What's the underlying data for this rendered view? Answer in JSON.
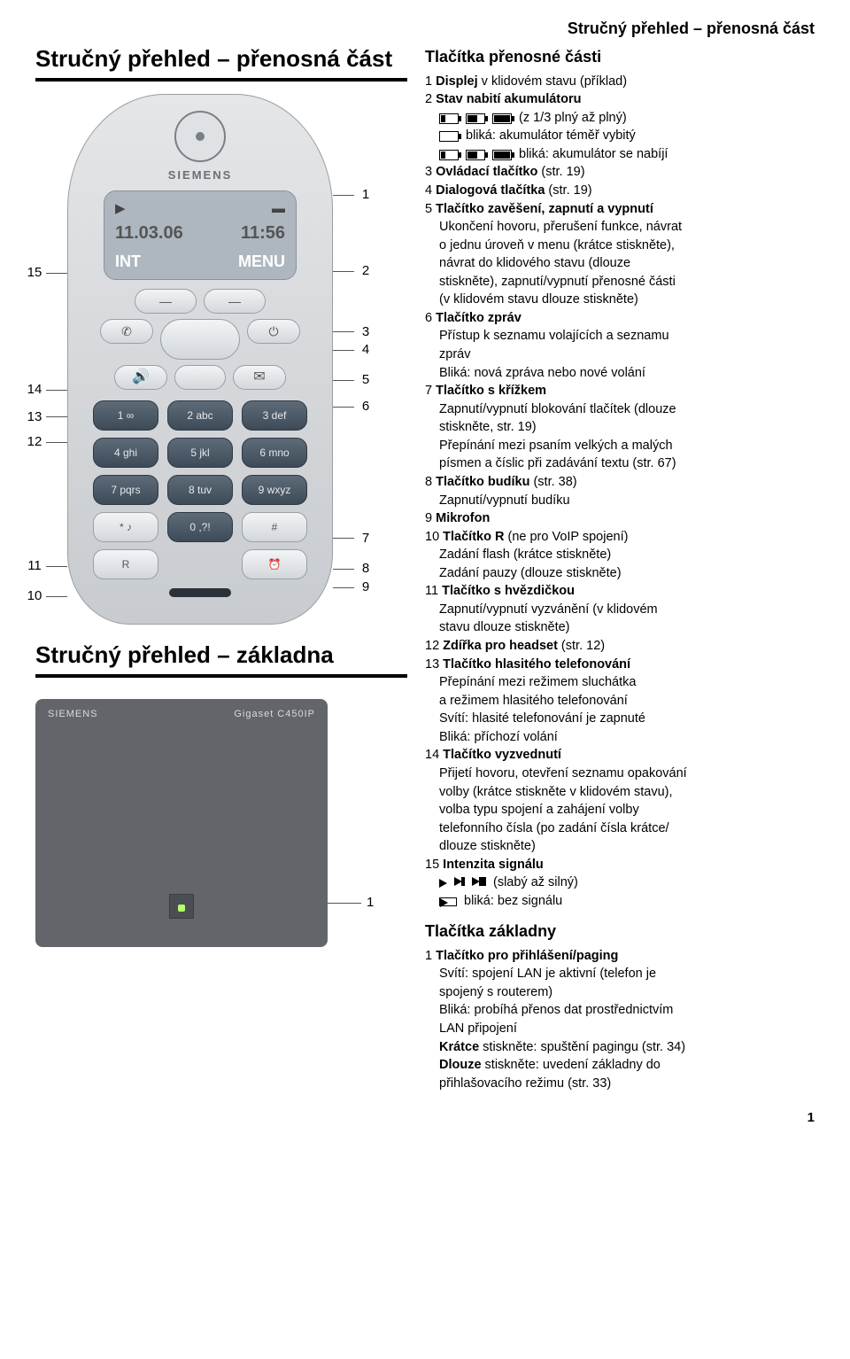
{
  "header": "Stručný přehled – přenosná část",
  "left": {
    "title1": "Stručný přehled – přenosná část",
    "title2": "Stručný přehled – základna",
    "phone": {
      "brand": "SIEMENS",
      "screen_date": "11.03.06",
      "screen_time": "11:56",
      "soft_left": "INT",
      "soft_right": "MENU",
      "keypad": [
        "1 ∞",
        "2 abc",
        "3 def",
        "4 ghi",
        "5 jkl",
        "6 mno",
        "7 pqrs",
        "8 tuv",
        "9 wxyz",
        "* ♪",
        "0 ,?!",
        "#"
      ],
      "bottom_left": "R",
      "bottom_right": "⏰"
    },
    "callouts_left": [
      "15",
      "14",
      "13",
      "12",
      "11",
      "10"
    ],
    "callouts_right": [
      "1",
      "2",
      "3",
      "4",
      "5",
      "6",
      "7",
      "8",
      "9"
    ],
    "base": {
      "brand": "SIEMENS",
      "model": "Gigaset C450IP",
      "callout": "1"
    }
  },
  "right": {
    "section1_title": "Tlačítka přenosné části",
    "items": [
      {
        "n": "1",
        "b": "Displej",
        "t": " v klidovém stavu (příklad)"
      },
      {
        "n": "2",
        "b": "Stav nabití akumulátoru",
        "t": ""
      }
    ],
    "batt_full_note": "(z 1/3 plný až plný)",
    "batt_blink_empty": "bliká: akumulátor téměř vybitý",
    "batt_blink_charging": "bliká: akumulátor se nabíjí",
    "items2": [
      {
        "n": "3",
        "b": "Ovládací tlačítko",
        "t": " (str. 19)"
      },
      {
        "n": "4",
        "b": "Dialogová tlačítka",
        "t": " (str. 19)"
      },
      {
        "n": "5",
        "b": "Tlačítko zavěšení, zapnutí a vypnutí",
        "t": ""
      }
    ],
    "it5_lines": [
      "Ukončení hovoru, přerušení funkce, návrat",
      "o jednu úroveň v menu (krátce stiskněte),",
      "návrat do klidového stavu (dlouze",
      "stiskněte), zapnutí/vypnutí přenosné části",
      "(v klidovém stavu dlouze stiskněte)"
    ],
    "items3": [
      {
        "n": "6",
        "b": "Tlačítko zpráv",
        "lines": [
          "Přístup k seznamu volajících a seznamu",
          "zpráv",
          "Bliká: nová zpráva nebo nové volání"
        ]
      },
      {
        "n": "7",
        "b": "Tlačítko s křížkem",
        "lines": [
          "Zapnutí/vypnutí blokování tlačítek (dlouze",
          "stiskněte, str. 19)",
          "Přepínání mezi psaním velkých a malých",
          "písmen a číslic při zadávání textu (str. 67)"
        ]
      },
      {
        "n": "8",
        "b": "Tlačítko budíku",
        "suffix": " (str. 38)",
        "lines": [
          "Zapnutí/vypnutí budíku"
        ]
      },
      {
        "n": "9",
        "b": "Mikrofon",
        "lines": []
      },
      {
        "n": "10",
        "b": "Tlačítko R",
        "suffix": " (ne pro VoIP spojení)",
        "lines": [
          "Zadání flash (krátce stiskněte)",
          "Zadání pauzy (dlouze stiskněte)"
        ]
      },
      {
        "n": "11",
        "b": "Tlačítko s hvězdičkou",
        "lines": [
          "Zapnutí/vypnutí vyzvánění (v klidovém",
          "stavu dlouze stiskněte)"
        ]
      },
      {
        "n": "12",
        "b": "Zdířka pro headset",
        "suffix": " (str. 12)",
        "lines": []
      },
      {
        "n": "13",
        "b": "Tlačítko hlasitého telefonování",
        "lines": [
          "Přepínání mezi režimem sluchátka",
          "a režimem hlasitého telefonování",
          "Svítí: hlasité telefonování je zapnuté",
          "Bliká: příchozí volání"
        ]
      },
      {
        "n": "14",
        "b": "Tlačítko vyzvednutí",
        "lines": [
          "Přijetí hovoru, otevření seznamu opakování",
          "volby (krátce stiskněte v klidovém stavu),",
          "volba typu spojení a zahájení volby",
          "telefonního čísla (po zadání čísla krátce/",
          "dlouze stiskněte)"
        ]
      },
      {
        "n": "15",
        "b": "Intenzita signálu",
        "lines": []
      }
    ],
    "signal_note": "(slabý až silný)",
    "signal_blink": "bliká: bez signálu",
    "section2_title": "Tlačítka základny",
    "base_item": {
      "n": "1",
      "b": "Tlačítko pro přihlášení/paging"
    },
    "base_lines": [
      "Svítí: spojení LAN je aktivní (telefon je",
      "spojený s routerem)",
      "Bliká: probíhá přenos dat prostřednictvím",
      "LAN připojení"
    ],
    "base_kratce_b": "Krátce",
    "base_kratce_t": " stiskněte: spuštění pagingu (str. 34)",
    "base_dlouze_b": "Dlouze",
    "base_dlouze_t": " stiskněte: uvedení základny do",
    "base_dlouze_t2": "přihlašovacího režimu (str. 33)"
  },
  "page_number": "1"
}
